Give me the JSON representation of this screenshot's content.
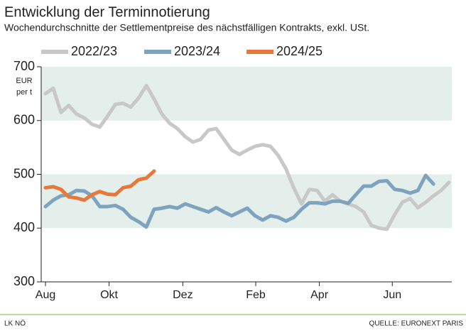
{
  "chart_data": {
    "type": "line",
    "title": "Entwicklung der Terminnotierung",
    "subtitle": "Wochendurchschnitte der Settlementpreise des nächstfälligen Kontrakts, exkl. USt.",
    "y_label": "EUR per t",
    "footer_left": "LK NÖ",
    "footer_right": "QUELLE: EURONEXT PARIS",
    "x": [
      0,
      1,
      2,
      3,
      4,
      5,
      6,
      7,
      8,
      9,
      10,
      11,
      12,
      13,
      14,
      15,
      16,
      17,
      18,
      19,
      20,
      21,
      22,
      23,
      24,
      25,
      26,
      27,
      28,
      29,
      30,
      31,
      32,
      33,
      34,
      35,
      36,
      37,
      38,
      39,
      40,
      41,
      42,
      43,
      44,
      45,
      46,
      47,
      48,
      49,
      50,
      51,
      52
    ],
    "xlim": [
      0,
      52
    ],
    "xticks": [
      {
        "value": 0,
        "label": "Aug"
      },
      {
        "value": 8.2,
        "label": "Okt"
      },
      {
        "value": 17.7,
        "label": "Dez"
      },
      {
        "value": 27.1,
        "label": "Feb"
      },
      {
        "value": 35.3,
        "label": "Apr"
      },
      {
        "value": 44.7,
        "label": "Jun"
      }
    ],
    "ylim": [
      300,
      700
    ],
    "yticks": [
      300,
      400,
      500,
      600,
      700
    ],
    "bands": [
      [
        400,
        500
      ],
      [
        600,
        700
      ]
    ],
    "series": [
      {
        "name": "2022/23",
        "color": "#c8c8c8",
        "values": [
          650,
          660,
          615,
          628,
          612,
          605,
          593,
          588,
          608,
          630,
          632,
          625,
          642,
          665,
          640,
          612,
          595,
          585,
          570,
          560,
          565,
          582,
          585,
          565,
          545,
          537,
          545,
          552,
          555,
          552,
          535,
          510,
          475,
          445,
          472,
          470,
          450,
          462,
          450,
          445,
          440,
          430,
          405,
          400,
          398,
          425,
          448,
          455,
          438,
          448,
          460,
          470,
          485
        ]
      },
      {
        "name": "2023/24",
        "color": "#7ea3bf",
        "values": [
          440,
          452,
          460,
          462,
          470,
          469,
          460,
          440,
          440,
          442,
          435,
          420,
          412,
          402,
          435,
          437,
          440,
          437,
          445,
          440,
          435,
          430,
          438,
          430,
          423,
          430,
          437,
          423,
          415,
          423,
          420,
          413,
          420,
          435,
          447,
          447,
          445,
          450,
          450,
          446,
          462,
          478,
          478,
          487,
          488,
          472,
          470,
          465,
          470,
          498,
          482,
          null,
          null
        ]
      },
      {
        "name": "2024/25",
        "color": "#e8773a",
        "values": [
          475,
          477,
          472,
          458,
          456,
          452,
          462,
          468,
          463,
          462,
          475,
          478,
          490,
          493,
          506,
          null,
          null,
          null,
          null,
          null,
          null,
          null,
          null,
          null,
          null,
          null,
          null,
          null,
          null,
          null,
          null,
          null,
          null,
          null,
          null,
          null,
          null,
          null,
          null,
          null,
          null,
          null,
          null,
          null,
          null,
          null,
          null,
          null,
          null,
          null,
          null,
          null,
          null
        ]
      }
    ]
  }
}
